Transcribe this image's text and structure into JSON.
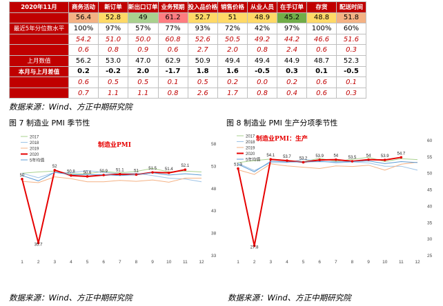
{
  "table": {
    "corner": "2020年11月",
    "columns": [
      "商务活动",
      "新订单",
      "新出口订单",
      "业务预期",
      "投入品价格",
      "销售价格",
      "从业人员",
      "在手订单",
      "存货",
      "配送时间"
    ],
    "header_colors": [
      "#f4b183",
      "#ffd966",
      "#a9d08e",
      "#ff7c80",
      "#ffd966",
      "#ffd966",
      "#ffd966",
      "#70ad47",
      "#ffd966",
      "#f4b183"
    ],
    "rows": [
      {
        "label": "最近5年分位数水平",
        "italic": false,
        "cls": "",
        "values": [
          "100%",
          "97%",
          "57%",
          "77%",
          "93%",
          "72%",
          "42%",
          "97%",
          "100%",
          "60%"
        ]
      },
      {
        "label": "5年均值",
        "italic": true,
        "cls": "hist",
        "values": [
          "54.2",
          "51.0",
          "50.0",
          "60.8",
          "52.6",
          "50.5",
          "49.2",
          "44.2",
          "46.6",
          "51.6"
        ]
      },
      {
        "label": "5年历史波动率",
        "italic": true,
        "cls": "hist",
        "values": [
          "0.6",
          "0.8",
          "0.9",
          "0.6",
          "2.7",
          "2.0",
          "0.8",
          "2.4",
          "0.6",
          "0.3"
        ]
      },
      {
        "label": "上月数值",
        "italic": false,
        "cls": "",
        "values": [
          "56.2",
          "53.0",
          "47.0",
          "62.9",
          "50.9",
          "49.4",
          "49.4",
          "44.9",
          "48.7",
          "52.3"
        ]
      },
      {
        "label": "本月与上月差值",
        "italic": false,
        "cls": "chg",
        "values": [
          "0.2",
          "-0.2",
          "2.0",
          "-1.7",
          "1.8",
          "1.6",
          "-0.5",
          "0.3",
          "0.1",
          "-0.5"
        ]
      },
      {
        "label": "5年差值平均",
        "italic": true,
        "cls": "hist",
        "values": [
          "0.6",
          "0.5",
          "0.5",
          "0.1",
          "0.5",
          "0.2",
          "0.0",
          "0.2",
          "0.6",
          "0.1"
        ]
      },
      {
        "label": "5年差值历史波动率",
        "italic": true,
        "cls": "hist",
        "values": [
          "0.7",
          "1.1",
          "1.1",
          "0.8",
          "2.6",
          "1.7",
          "0.8",
          "0.4",
          "0.6",
          "0.3"
        ]
      }
    ],
    "first_row": [
      "56.4",
      "52.8",
      "49",
      "61.2",
      "52.7",
      "51",
      "48.9",
      "45.2",
      "48.8",
      "51.8"
    ]
  },
  "source_text": "数据来源：Wind、方正中期研究院",
  "fig7_caption": "图 7  制造业 PMI 季节性",
  "fig8_caption": "图 8  制造业 PMI 生产分项季节性",
  "chart_data": [
    {
      "type": "line",
      "title": "制造业PMI",
      "x": [
        1,
        2,
        3,
        4,
        5,
        6,
        7,
        8,
        9,
        10,
        11,
        12
      ],
      "y_right_ticks": [
        33,
        38,
        43,
        48,
        53,
        58
      ],
      "ylim": [
        33,
        58
      ],
      "legend": [
        "2017",
        "2018",
        "2019",
        "2020",
        "5年均值"
      ],
      "series": [
        {
          "name": "2017",
          "color": "#a9d18e",
          "values": [
            51.3,
            51.6,
            51.8,
            51.2,
            51.2,
            51.7,
            51.4,
            51.7,
            52.4,
            51.6,
            51.8,
            51.6
          ]
        },
        {
          "name": "2018",
          "color": "#9dc3e6",
          "values": [
            51.3,
            50.3,
            51.5,
            51.4,
            51.9,
            51.5,
            51.2,
            51.3,
            50.8,
            50.2,
            50.0,
            49.4
          ]
        },
        {
          "name": "2019",
          "color": "#f4b183",
          "values": [
            49.5,
            49.2,
            50.5,
            50.1,
            49.4,
            49.4,
            49.7,
            49.5,
            49.8,
            49.3,
            50.2,
            50.2
          ]
        },
        {
          "name": "2020",
          "color": "#e60000",
          "values": [
            50,
            35.7,
            52,
            50.8,
            50.6,
            50.9,
            51.1,
            51,
            51.5,
            51.4,
            52.1,
            null
          ]
        },
        {
          "name": "5年均值",
          "color": "#5b9bd5",
          "values": [
            50.8,
            49.6,
            51.5,
            51.0,
            51.0,
            51.0,
            50.8,
            51.0,
            51.4,
            50.9,
            51.2,
            50.9
          ]
        }
      ],
      "labels": [
        "50",
        "35.7",
        "52",
        "50.8",
        "50.6",
        "50.9",
        "51.1",
        "51",
        "51.5",
        "51.4",
        "52.1"
      ]
    },
    {
      "type": "line",
      "title": "制造业PMI：生产",
      "x": [
        1,
        2,
        3,
        4,
        5,
        6,
        7,
        8,
        9,
        10,
        11,
        12
      ],
      "y_right_ticks": [
        25,
        30,
        35,
        40,
        45,
        50,
        55,
        60
      ],
      "ylim": [
        25,
        60
      ],
      "legend": [
        "2017",
        "2018",
        "2019",
        "2020",
        "5年均值"
      ],
      "series": [
        {
          "name": "2017",
          "color": "#a9d18e",
          "values": [
            53.1,
            53.7,
            54.2,
            53.8,
            53.4,
            54.4,
            53.5,
            54.1,
            54.7,
            53.4,
            54.3,
            54.0
          ]
        },
        {
          "name": "2018",
          "color": "#9dc3e6",
          "values": [
            52.9,
            50.7,
            53.1,
            53.1,
            54.1,
            53.6,
            53.0,
            53.3,
            53.0,
            52.0,
            52.0,
            50.8
          ]
        },
        {
          "name": "2019",
          "color": "#f4b183",
          "values": [
            50.9,
            49.5,
            52.7,
            52.1,
            51.7,
            51.3,
            52.1,
            51.9,
            52.3,
            50.8,
            52.6,
            53.2
          ]
        },
        {
          "name": "2020",
          "color": "#e60000",
          "values": [
            51.3,
            27.8,
            54.1,
            53.7,
            53.2,
            53.9,
            54,
            53.5,
            54,
            53.9,
            54.7,
            null
          ]
        },
        {
          "name": "5年均值",
          "color": "#5b9bd5",
          "values": [
            52.6,
            50.3,
            53.5,
            53.3,
            53.3,
            53.4,
            53.3,
            53.4,
            53.6,
            52.8,
            53.4,
            53.1
          ]
        }
      ],
      "labels": [
        "51.3",
        "27.8",
        "54.1",
        "53.7",
        "53.2",
        "53.9",
        "54",
        "53.5",
        "54",
        "53.9",
        "54.7"
      ]
    }
  ]
}
